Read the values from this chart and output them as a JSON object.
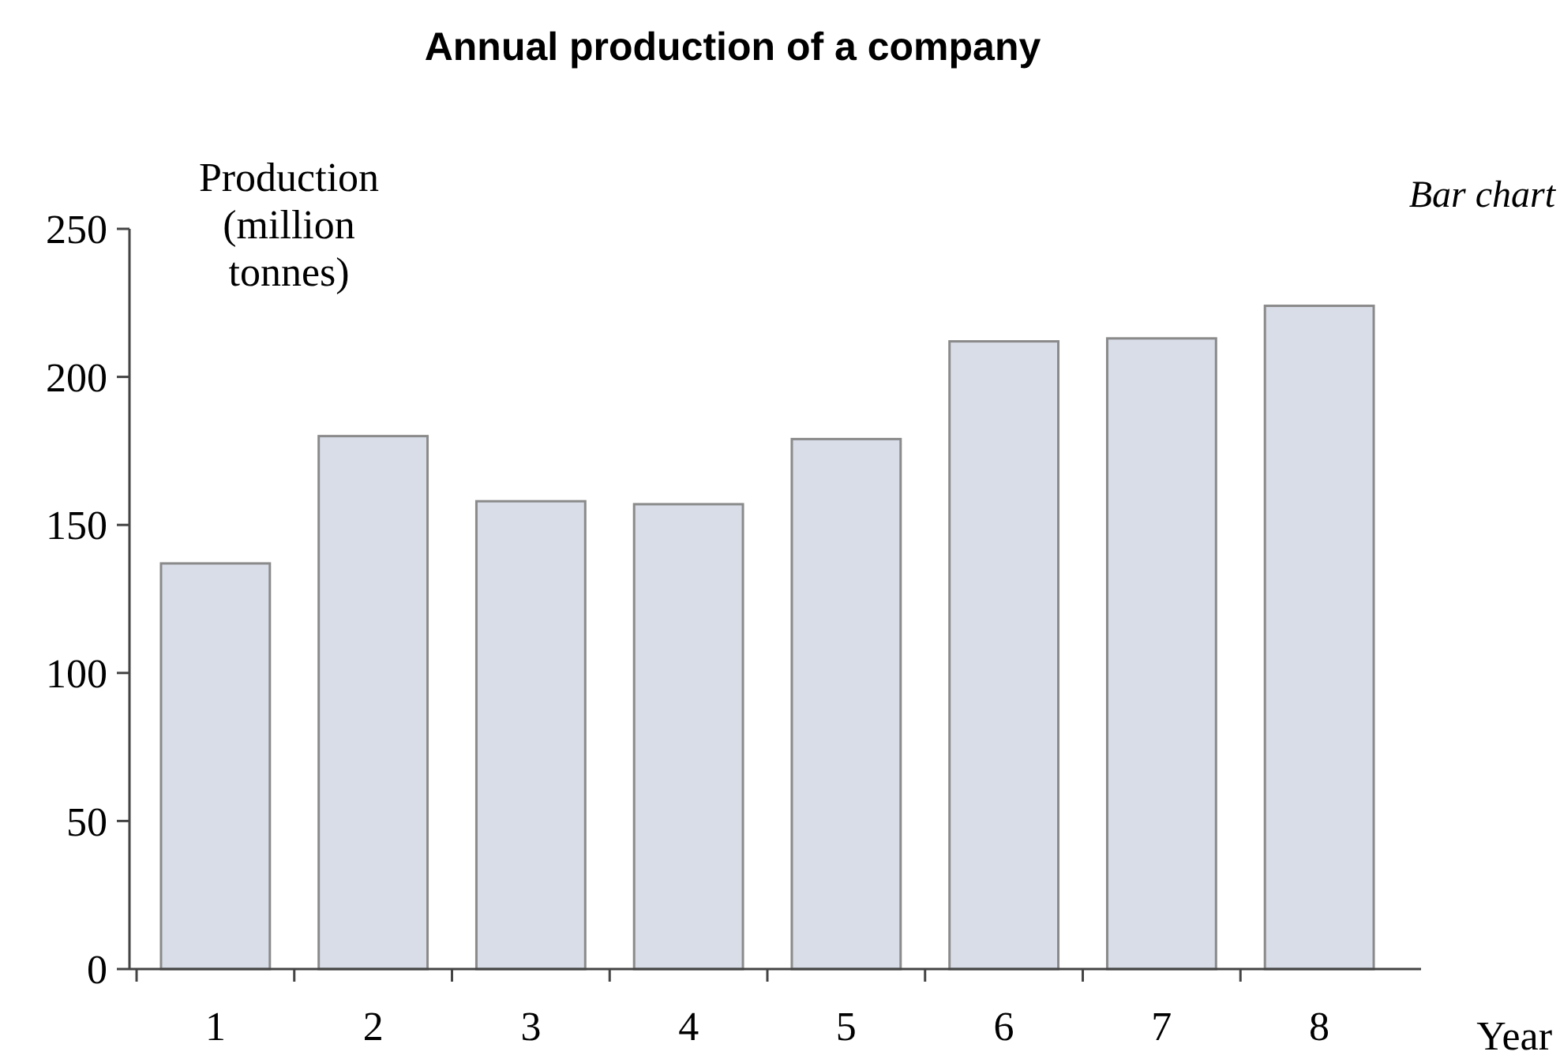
{
  "chart_data": {
    "type": "bar",
    "title": "Annual production of a company",
    "xlabel": "Year",
    "ylabel": "Production (million tonnes)",
    "annotations": [
      "Bar chart"
    ],
    "categories": [
      "1",
      "2",
      "3",
      "4",
      "5",
      "6",
      "7",
      "8"
    ],
    "values": [
      137,
      180,
      158,
      157,
      179,
      212,
      213,
      224
    ],
    "color": "#d8dde8",
    "ylim": [
      0,
      250
    ],
    "yticks": [
      0,
      50,
      100,
      150,
      200,
      250
    ],
    "grid": false
  }
}
